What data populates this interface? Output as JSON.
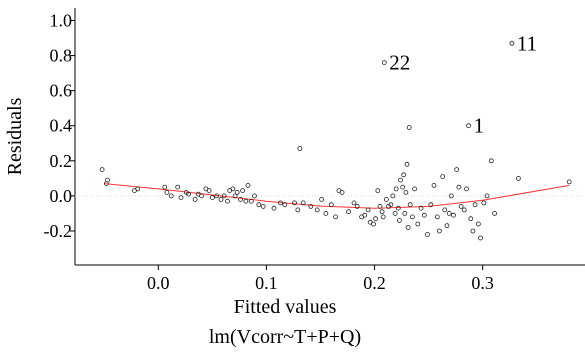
{
  "chart_data": {
    "type": "scatter",
    "title": "",
    "xlabel": "Fitted values",
    "ylabel": "Residuals",
    "caption": "lm(Vcorr~T+P+Q)",
    "xlim": [
      -0.065,
      0.39
    ],
    "ylim": [
      -0.28,
      1.02
    ],
    "xticks": [
      {
        "value": 0.0,
        "label": "0.0"
      },
      {
        "value": 0.1,
        "label": "0.1"
      },
      {
        "value": 0.2,
        "label": "0.2"
      },
      {
        "value": 0.3,
        "label": "0.3"
      }
    ],
    "yticks": [
      {
        "value": -0.2,
        "label": "-0.2"
      },
      {
        "value": 0.0,
        "label": "0.0"
      },
      {
        "value": 0.2,
        "label": "0.2"
      },
      {
        "value": 0.4,
        "label": "0.4"
      },
      {
        "value": 0.6,
        "label": "0.6"
      },
      {
        "value": 0.8,
        "label": "0.8"
      },
      {
        "value": 1.0,
        "label": "1.0"
      }
    ],
    "grid": false,
    "reference_line_y": 0,
    "smooth_color": "#ff3333",
    "point_color": "#222222",
    "points": [
      [
        -0.052,
        0.15
      ],
      [
        -0.048,
        0.07
      ],
      [
        -0.047,
        0.09
      ],
      [
        -0.022,
        0.03
      ],
      [
        -0.019,
        0.04
      ],
      [
        0.006,
        0.05
      ],
      [
        0.008,
        0.02
      ],
      [
        0.012,
        0.0
      ],
      [
        0.018,
        0.05
      ],
      [
        0.021,
        -0.01
      ],
      [
        0.026,
        0.02
      ],
      [
        0.028,
        0.01
      ],
      [
        0.034,
        -0.02
      ],
      [
        0.037,
        0.01
      ],
      [
        0.04,
        0.0
      ],
      [
        0.044,
        0.04
      ],
      [
        0.047,
        0.03
      ],
      [
        0.05,
        -0.01
      ],
      [
        0.054,
        0.0
      ],
      [
        0.058,
        -0.02
      ],
      [
        0.061,
        0.0
      ],
      [
        0.064,
        -0.03
      ],
      [
        0.066,
        0.03
      ],
      [
        0.069,
        0.04
      ],
      [
        0.071,
        0.0
      ],
      [
        0.073,
        0.02
      ],
      [
        0.076,
        -0.02
      ],
      [
        0.078,
        0.03
      ],
      [
        0.081,
        -0.03
      ],
      [
        0.083,
        0.06
      ],
      [
        0.086,
        -0.03
      ],
      [
        0.089,
        0.0
      ],
      [
        0.093,
        -0.05
      ],
      [
        0.097,
        -0.06
      ],
      [
        0.107,
        -0.07
      ],
      [
        0.113,
        -0.04
      ],
      [
        0.117,
        -0.05
      ],
      [
        0.126,
        -0.04
      ],
      [
        0.129,
        -0.08
      ],
      [
        0.131,
        0.27
      ],
      [
        0.134,
        -0.04
      ],
      [
        0.141,
        -0.06
      ],
      [
        0.147,
        -0.08
      ],
      [
        0.151,
        -0.02
      ],
      [
        0.155,
        -0.1
      ],
      [
        0.16,
        -0.05
      ],
      [
        0.164,
        -0.12
      ],
      [
        0.167,
        0.03
      ],
      [
        0.17,
        0.02
      ],
      [
        0.176,
        -0.09
      ],
      [
        0.181,
        -0.04
      ],
      [
        0.184,
        -0.06
      ],
      [
        0.188,
        -0.12
      ],
      [
        0.191,
        -0.11
      ],
      [
        0.194,
        -0.08
      ],
      [
        0.196,
        -0.15
      ],
      [
        0.199,
        -0.16
      ],
      [
        0.201,
        -0.13
      ],
      [
        0.203,
        0.03
      ],
      [
        0.205,
        -0.06
      ],
      [
        0.207,
        -0.09
      ],
      [
        0.208,
        -0.12
      ],
      [
        0.209,
        0.76
      ],
      [
        0.211,
        -0.02
      ],
      [
        0.213,
        -0.06
      ],
      [
        0.215,
        -0.05
      ],
      [
        0.217,
        0.0
      ],
      [
        0.219,
        -0.1
      ],
      [
        0.22,
        0.04
      ],
      [
        0.222,
        -0.07
      ],
      [
        0.223,
        -0.14
      ],
      [
        0.224,
        0.09
      ],
      [
        0.226,
        0.05
      ],
      [
        0.227,
        0.12
      ],
      [
        0.228,
        -0.1
      ],
      [
        0.229,
        0.02
      ],
      [
        0.23,
        0.18
      ],
      [
        0.231,
        -0.18
      ],
      [
        0.232,
        0.39
      ],
      [
        0.233,
        -0.05
      ],
      [
        0.235,
        -0.12
      ],
      [
        0.237,
        0.04
      ],
      [
        0.24,
        -0.16
      ],
      [
        0.243,
        -0.07
      ],
      [
        0.246,
        -0.11
      ],
      [
        0.249,
        -0.22
      ],
      [
        0.252,
        -0.05
      ],
      [
        0.255,
        0.06
      ],
      [
        0.258,
        -0.12
      ],
      [
        0.26,
        -0.2
      ],
      [
        0.263,
        0.11
      ],
      [
        0.265,
        -0.08
      ],
      [
        0.267,
        -0.17
      ],
      [
        0.269,
        -0.1
      ],
      [
        0.271,
        0.0
      ],
      [
        0.273,
        -0.11
      ],
      [
        0.276,
        0.15
      ],
      [
        0.278,
        0.05
      ],
      [
        0.28,
        -0.06
      ],
      [
        0.283,
        -0.08
      ],
      [
        0.285,
        0.04
      ],
      [
        0.287,
        0.4
      ],
      [
        0.289,
        -0.13
      ],
      [
        0.291,
        -0.2
      ],
      [
        0.293,
        -0.05
      ],
      [
        0.296,
        -0.16
      ],
      [
        0.298,
        -0.24
      ],
      [
        0.301,
        -0.04
      ],
      [
        0.304,
        0.0
      ],
      [
        0.308,
        0.2
      ],
      [
        0.311,
        -0.1
      ],
      [
        0.327,
        0.87
      ],
      [
        0.333,
        0.1
      ],
      [
        0.38,
        0.08
      ]
    ],
    "smooth_line": [
      [
        -0.05,
        0.07
      ],
      [
        0.0,
        0.04
      ],
      [
        0.05,
        0.005
      ],
      [
        0.1,
        -0.03
      ],
      [
        0.15,
        -0.058
      ],
      [
        0.2,
        -0.071
      ],
      [
        0.25,
        -0.06
      ],
      [
        0.3,
        -0.025
      ],
      [
        0.38,
        0.06
      ]
    ],
    "point_labels": [
      {
        "text": "22",
        "x": 0.209,
        "y": 0.76
      },
      {
        "text": "1",
        "x": 0.287,
        "y": 0.4
      },
      {
        "text": "11",
        "x": 0.327,
        "y": 0.87
      }
    ]
  }
}
